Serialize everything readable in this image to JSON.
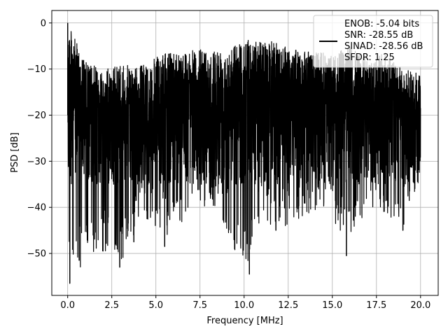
{
  "chart_data": {
    "type": "line",
    "title": "",
    "xlabel": "Frequency [MHz]",
    "ylabel": "PSD [dB]",
    "xlim": [
      -0.9,
      21.0
    ],
    "ylim": [
      -59.1,
      2.7
    ],
    "xticks": [
      0.0,
      2.5,
      5.0,
      7.5,
      10.0,
      12.5,
      15.0,
      17.5,
      20.0
    ],
    "xtick_labels": [
      "0.0",
      "2.5",
      "5.0",
      "7.5",
      "10.0",
      "12.5",
      "15.0",
      "17.5",
      "20.0"
    ],
    "yticks": [
      0,
      -10,
      -20,
      -30,
      -40,
      -50
    ],
    "ytick_labels": [
      "0",
      "−10",
      "−20",
      "−30",
      "−40",
      "−50"
    ],
    "grid": true,
    "legend_position": "top-right",
    "series": [
      {
        "name": "",
        "color": "#000000",
        "x_range": [
          0.0,
          20.0
        ],
        "noise_floor_db": -20,
        "peak": {
          "x": 0.0,
          "y": 0.0
        },
        "envelope": {
          "x": [
            0.0,
            1.0,
            2.0,
            3.0,
            4.0,
            5.0,
            6.0,
            7.0,
            8.0,
            9.0,
            10.0,
            11.0,
            12.0,
            13.0,
            14.0,
            15.0,
            16.0,
            17.0,
            18.0,
            19.0,
            20.0
          ],
          "max": [
            0.0,
            -8.5,
            -10.0,
            -9.0,
            -9.5,
            -7.5,
            -6.0,
            -6.0,
            -5.5,
            -5.5,
            -3.5,
            -4.0,
            -4.0,
            -6.0,
            -6.0,
            -7.0,
            -5.0,
            -8.0,
            -6.5,
            -10.0,
            -11.0
          ],
          "min": [
            -56.5,
            -52.0,
            -49.5,
            -53.0,
            -44.5,
            -44.0,
            -48.5,
            -39.0,
            -40.0,
            -44.5,
            -54.5,
            -43.5,
            -45.0,
            -43.0,
            -41.0,
            -42.0,
            -50.5,
            -40.0,
            -41.5,
            -45.0,
            -33.0
          ]
        },
        "deep_dips": [
          {
            "x": 0.12,
            "y": -56.5
          },
          {
            "x": 0.65,
            "y": -51.5
          },
          {
            "x": 2.0,
            "y": -49.5
          },
          {
            "x": 2.95,
            "y": -53.0
          },
          {
            "x": 3.75,
            "y": -47.5
          },
          {
            "x": 5.5,
            "y": -48.5
          },
          {
            "x": 10.3,
            "y": -54.5
          },
          {
            "x": 11.8,
            "y": -45.0
          },
          {
            "x": 15.8,
            "y": -50.5
          },
          {
            "x": 19.0,
            "y": -45.0
          }
        ]
      }
    ],
    "legend": {
      "lines": [
        "ENOB: -5.04 bits",
        "SNR: -28.55 dB",
        "SINAD: -28.56 dB",
        "SFDR: 1.25"
      ]
    }
  }
}
